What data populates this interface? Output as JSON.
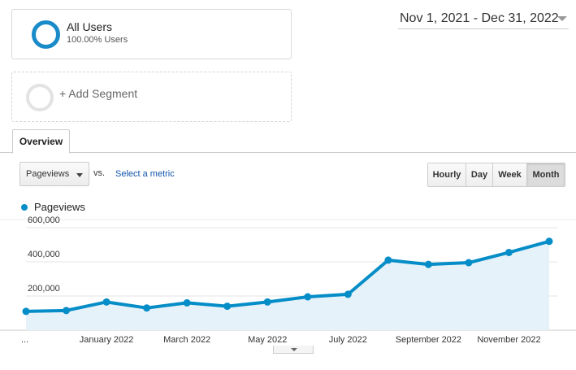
{
  "segments": {
    "all_users": {
      "title": "All Users",
      "subtitle": "100.00% Users"
    },
    "add_segment": {
      "label": "+ Add Segment"
    }
  },
  "date_range": {
    "label": "Nov 1, 2021 - Dec 31, 2022"
  },
  "tabs": [
    {
      "label": "Overview",
      "active": true
    }
  ],
  "controls": {
    "metric_select": {
      "value": "Pageviews"
    },
    "vs_label": "vs.",
    "select_metric_link": "Select a metric",
    "granularity": [
      {
        "label": "Hourly",
        "active": false
      },
      {
        "label": "Day",
        "active": false
      },
      {
        "label": "Week",
        "active": false
      },
      {
        "label": "Month",
        "active": true
      }
    ]
  },
  "colors": {
    "accent": "#058dc7",
    "segment_ring": "#1a8bc9",
    "link": "#1155aa",
    "area_fill": "#e6f2fa"
  },
  "chart_data": {
    "type": "area",
    "title": "",
    "series": [
      {
        "name": "Pageviews",
        "values": [
          110000,
          115000,
          165000,
          130000,
          160000,
          140000,
          165000,
          195000,
          210000,
          410000,
          385000,
          395000,
          455000,
          520000
        ]
      }
    ],
    "categories": [
      "Nov 2021",
      "Dec 2021",
      "Jan 2022",
      "Feb 2022",
      "Mar 2022",
      "Apr 2022",
      "May 2022",
      "Jun 2022",
      "Jul 2022",
      "Aug 2022",
      "Sep 2022",
      "Oct 2022",
      "Nov 2022",
      "Dec 2022"
    ],
    "x_tick_labels": [
      {
        "index": 0,
        "label": "..."
      },
      {
        "index": 2,
        "label": "January 2022"
      },
      {
        "index": 4,
        "label": "March 2022"
      },
      {
        "index": 6,
        "label": "May 2022"
      },
      {
        "index": 8,
        "label": "July 2022"
      },
      {
        "index": 10,
        "label": "September 2022"
      },
      {
        "index": 12,
        "label": "November 2022"
      }
    ],
    "y_tick_labels": [
      {
        "value": 600000,
        "label": "600,000"
      },
      {
        "value": 400000,
        "label": "400,000"
      },
      {
        "value": 200000,
        "label": "200,000"
      }
    ],
    "ylim": [
      0,
      600000
    ],
    "grid": true,
    "legend_position": "top-left"
  }
}
